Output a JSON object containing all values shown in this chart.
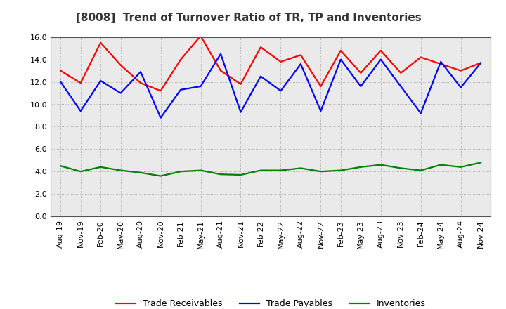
{
  "title": "[8008]  Trend of Turnover Ratio of TR, TP and Inventories",
  "xlabels": [
    "Aug-19",
    "Nov-19",
    "Feb-20",
    "May-20",
    "Aug-20",
    "Nov-20",
    "Feb-21",
    "May-21",
    "Aug-21",
    "Nov-21",
    "Feb-22",
    "May-22",
    "Aug-22",
    "Nov-22",
    "Feb-23",
    "May-23",
    "Aug-23",
    "Nov-23",
    "Feb-24",
    "May-24",
    "Aug-24",
    "Nov-24"
  ],
  "trade_receivables": [
    13.0,
    11.9,
    15.5,
    13.5,
    11.9,
    11.2,
    14.0,
    16.1,
    13.0,
    11.8,
    15.1,
    13.8,
    14.4,
    11.6,
    14.8,
    12.8,
    14.8,
    12.8,
    14.2,
    13.6,
    13.0,
    13.7
  ],
  "trade_payables": [
    12.0,
    9.4,
    12.1,
    11.0,
    12.9,
    8.8,
    11.3,
    11.6,
    14.5,
    9.3,
    12.5,
    11.2,
    13.6,
    9.4,
    14.0,
    11.6,
    14.0,
    11.6,
    9.2,
    13.8,
    11.5,
    13.7
  ],
  "inventories": [
    4.5,
    4.0,
    4.4,
    4.1,
    3.9,
    3.6,
    4.0,
    4.1,
    3.75,
    3.7,
    4.1,
    4.1,
    4.3,
    4.0,
    4.1,
    4.4,
    4.6,
    4.3,
    4.1,
    4.6,
    4.4,
    4.8
  ],
  "ylim": [
    0.0,
    16.0
  ],
  "yticks": [
    0.0,
    2.0,
    4.0,
    6.0,
    8.0,
    10.0,
    12.0,
    14.0,
    16.0
  ],
  "tr_color": "#ff0000",
  "tp_color": "#0000ff",
  "inv_color": "#008000",
  "legend_tr": "Trade Receivables",
  "legend_tp": "Trade Payables",
  "legend_inv": "Inventories",
  "bg_color": "#ffffff",
  "plot_bg_color": "#eaeaea",
  "grid_color": "#999999",
  "title_fontsize": 11,
  "axis_fontsize": 8,
  "legend_fontsize": 9,
  "linewidth": 1.6
}
